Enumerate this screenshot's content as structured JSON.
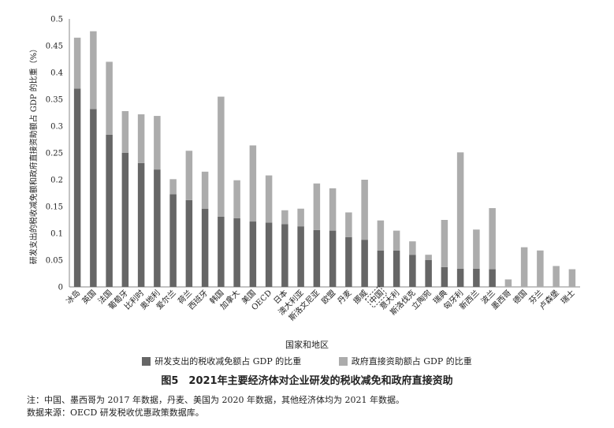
{
  "chart_data": {
    "type": "bar",
    "stacked": true,
    "ylabel": "研发支出的税收减免额和政府直接资助额占 GDP 的比重（%）",
    "xlabel": "国家和地区",
    "ylim": [
      0,
      0.5
    ],
    "yticks": [
      "0",
      "0.05",
      "0.1",
      "0.15",
      "0.2",
      "0.25",
      "0.3",
      "0.35",
      "0.4",
      "0.45",
      "0.5"
    ],
    "grid": false,
    "legend_position": "bottom",
    "categories": [
      "冰岛",
      "英国",
      "法国",
      "葡萄牙",
      "比利时",
      "奥地利",
      "爱尔兰",
      "荷兰",
      "西班牙",
      "韩国",
      "加拿大",
      "美国",
      "OECD",
      "日本",
      "澳大利亚",
      "斯洛文尼亚",
      "欧盟",
      "丹麦",
      "挪威",
      "中国",
      "意大利",
      "斯洛伐克",
      "立陶宛",
      "瑞典",
      "匈牙利",
      "新西兰",
      "波兰",
      "墨西哥",
      "德国",
      "芬兰",
      "卢森堡",
      "瑞士"
    ],
    "highlight_category": "中国",
    "series": [
      {
        "name": "研发支出的税收减免额占 GDP 的比重",
        "color": "#666666",
        "values": [
          0.37,
          0.332,
          0.284,
          0.25,
          0.231,
          0.219,
          0.173,
          0.162,
          0.146,
          0.131,
          0.128,
          0.122,
          0.12,
          0.117,
          0.113,
          0.106,
          0.105,
          0.093,
          0.088,
          0.068,
          0.068,
          0.06,
          0.05,
          0.037,
          0.034,
          0.034,
          0.033,
          0,
          0,
          0,
          0,
          0
        ]
      },
      {
        "name": "政府直接资助额占 GDP 的比重",
        "color": "#acacac",
        "values": [
          0.095,
          0.145,
          0.136,
          0.078,
          0.091,
          0.1,
          0.028,
          0.092,
          0.069,
          0.224,
          0.071,
          0.142,
          0.088,
          0.026,
          0.033,
          0.087,
          0.079,
          0.046,
          0.112,
          0.056,
          0.037,
          0.025,
          0.01,
          0.088,
          0.217,
          0.073,
          0.114,
          0.014,
          0.074,
          0.068,
          0.039,
          0.033
        ]
      }
    ]
  },
  "title": "图5　2021年主要经济体对企业研发的税收减免和政府直接资助",
  "notes": {
    "note1": "注：中国、墨西哥为 2017 年数据，丹麦、美国为 2020 年数据，其他经济体均为 2021 年数据。",
    "note2": "数据来源：OECD 研发税收优惠政策数据库。"
  }
}
